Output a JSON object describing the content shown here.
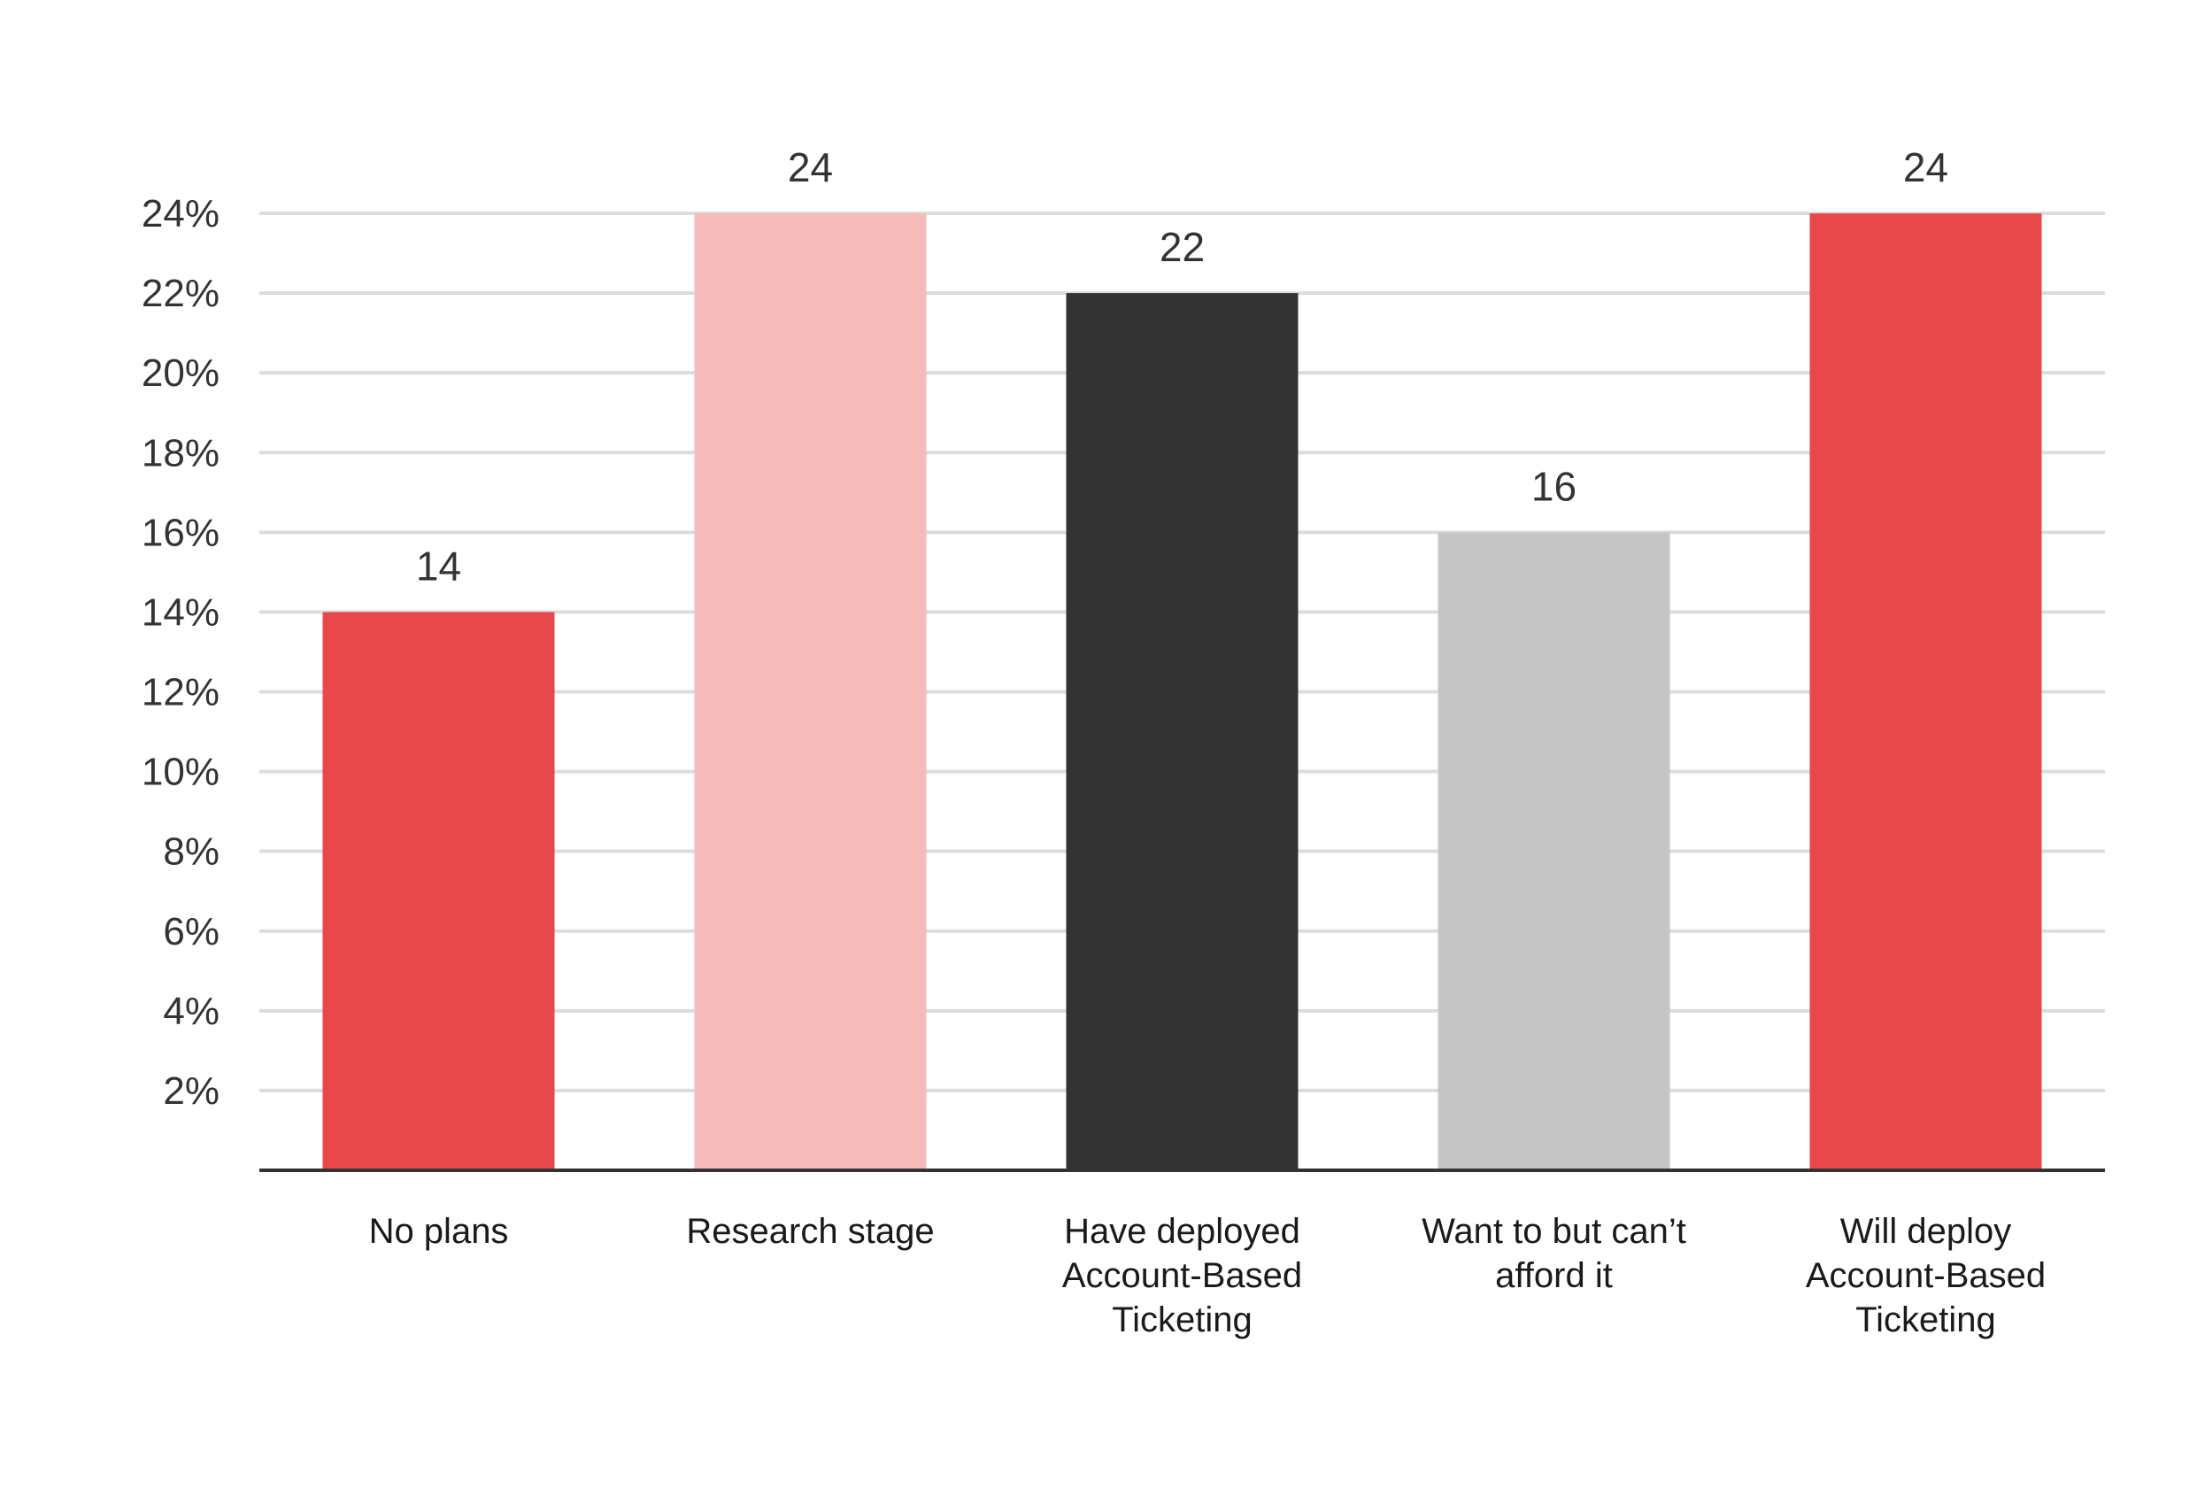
{
  "chart_data": {
    "type": "bar",
    "title": "",
    "xlabel": "",
    "ylabel": "",
    "ylim": [
      0,
      24
    ],
    "yticks": [
      2,
      4,
      6,
      8,
      10,
      12,
      14,
      16,
      18,
      20,
      22,
      24
    ],
    "ytick_format": "{v}%",
    "grid": true,
    "categories": [
      [
        "No plans"
      ],
      [
        "Research stage"
      ],
      [
        "Have deployed",
        "Account-Based",
        "Ticketing"
      ],
      [
        "Want to but can’t",
        "afford it"
      ],
      [
        "Will deploy",
        "Account-Based",
        "Ticketing"
      ]
    ],
    "values": [
      14,
      24,
      22,
      16,
      24
    ],
    "data_labels": [
      "14",
      "24",
      "22",
      "16",
      "24"
    ],
    "colors": [
      "#e8484b",
      "#f5baba",
      "#333333",
      "#c6c6c6",
      "#e8484b"
    ],
    "grid_color": "#dcdcdc",
    "axis_color": "#333333"
  }
}
